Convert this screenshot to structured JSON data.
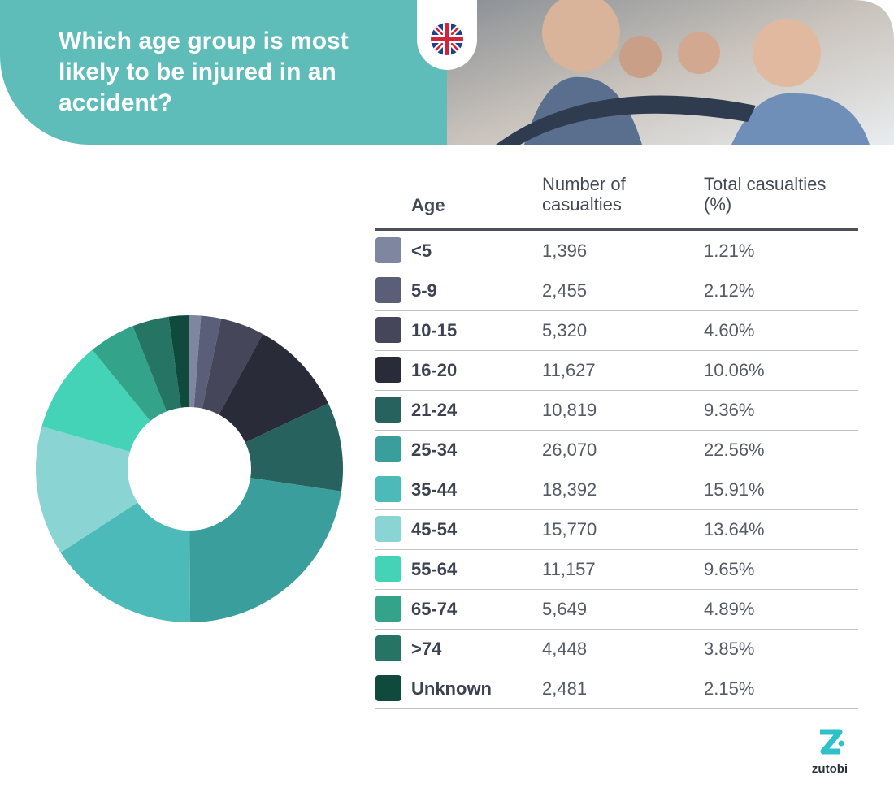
{
  "header": {
    "title": "Which age group is most likely to be injured in an accident?"
  },
  "chart_data": {
    "type": "pie",
    "category_label": "Age",
    "categories": [
      "<5",
      "5-9",
      "10-15",
      "16-20",
      "21-24",
      "25-34",
      "35-44",
      "45-54",
      "55-64",
      "65-74",
      ">74",
      "Unknown"
    ],
    "colors": [
      "#7f86a0",
      "#5b5e78",
      "#454659",
      "#2a2b38",
      "#27625f",
      "#3a9e9c",
      "#4bbab8",
      "#8ad4d3",
      "#44d3b6",
      "#33a38a",
      "#267463",
      "#0f4a3c"
    ],
    "series": [
      {
        "name": "Number of casualties",
        "values": [
          1396,
          2455,
          5320,
          11627,
          10819,
          26070,
          18392,
          15770,
          11157,
          5649,
          4448,
          2481
        ],
        "value_labels": [
          "1,396",
          "2,455",
          "5,320",
          "11,627",
          "10,819",
          "26,070",
          "18,392",
          "15,770",
          "11,157",
          "5,649",
          "4,448",
          "2,481"
        ]
      },
      {
        "name": "Total casualties (%)",
        "values": [
          1.21,
          2.12,
          4.6,
          10.06,
          9.36,
          22.56,
          15.91,
          13.64,
          9.65,
          4.89,
          3.85,
          2.15
        ],
        "value_labels": [
          "1.21%",
          "2.12%",
          "4.60%",
          "10.06%",
          "9.36%",
          "22.56%",
          "15.91%",
          "13.64%",
          "9.65%",
          "4.89%",
          "3.85%",
          "2.15%"
        ]
      }
    ]
  },
  "logo": "zutobi"
}
